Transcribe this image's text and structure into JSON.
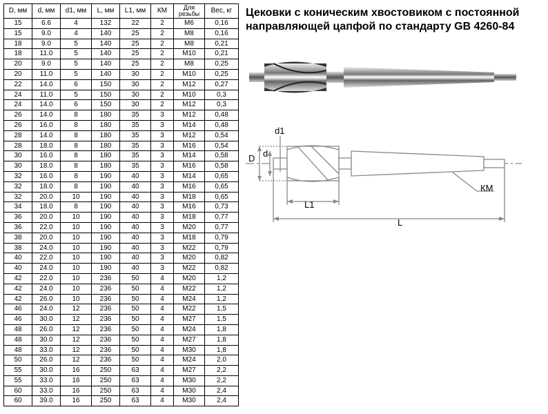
{
  "title": "Цековки с коническим хвостовиком с постоянной направляющей цапфой по стандарту GB 4260-84",
  "columns": [
    "D, мм",
    "d, мм",
    "d1, мм",
    "L, мм",
    "L1, мм",
    "КМ",
    "Для резьбы",
    "Вес, кг"
  ],
  "rows": [
    [
      "15",
      "6.6",
      "4",
      "132",
      "22",
      "2",
      "M6",
      "0,16"
    ],
    [
      "15",
      "9.0",
      "4",
      "140",
      "25",
      "2",
      "M8",
      "0,16"
    ],
    [
      "18",
      "9.0",
      "5",
      "140",
      "25",
      "2",
      "M8",
      "0,21"
    ],
    [
      "18",
      "11.0",
      "5",
      "140",
      "25",
      "2",
      "M10",
      "0,21"
    ],
    [
      "20",
      "9.0",
      "5",
      "140",
      "25",
      "2",
      "M8",
      "0,25"
    ],
    [
      "20",
      "11.0",
      "5",
      "140",
      "30",
      "2",
      "M10",
      "0,25"
    ],
    [
      "22",
      "14.0",
      "6",
      "150",
      "30",
      "2",
      "M12",
      "0,27"
    ],
    [
      "24",
      "11.0",
      "5",
      "150",
      "30",
      "2",
      "M10",
      "0,3"
    ],
    [
      "24",
      "14.0",
      "6",
      "150",
      "30",
      "2",
      "M12",
      "0,3"
    ],
    [
      "26",
      "14.0",
      "8",
      "180",
      "35",
      "3",
      "M12",
      "0,48"
    ],
    [
      "26",
      "16.0",
      "8",
      "180",
      "35",
      "3",
      "M14",
      "0,48"
    ],
    [
      "28",
      "14.0",
      "8",
      "180",
      "35",
      "3",
      "M12",
      "0,54"
    ],
    [
      "28",
      "18.0",
      "8",
      "180",
      "35",
      "3",
      "M16",
      "0,54"
    ],
    [
      "30",
      "16.0",
      "8",
      "180",
      "35",
      "3",
      "M14",
      "0,58"
    ],
    [
      "30",
      "18.0",
      "8",
      "180",
      "35",
      "3",
      "M16",
      "0,58"
    ],
    [
      "32",
      "16.0",
      "8",
      "190",
      "40",
      "3",
      "M14",
      "0,65"
    ],
    [
      "32",
      "18.0",
      "8",
      "190",
      "40",
      "3",
      "M16",
      "0,65"
    ],
    [
      "32",
      "20.0",
      "10",
      "190",
      "40",
      "3",
      "M18",
      "0,65"
    ],
    [
      "34",
      "18.0",
      "8",
      "190",
      "40",
      "3",
      "M16",
      "0,73"
    ],
    [
      "36",
      "20.0",
      "10",
      "190",
      "40",
      "3",
      "M18",
      "0,77"
    ],
    [
      "36",
      "22.0",
      "10",
      "190",
      "40",
      "3",
      "M20",
      "0,77"
    ],
    [
      "38",
      "20.0",
      "10",
      "190",
      "40",
      "3",
      "M18",
      "0,79"
    ],
    [
      "38",
      "24.0",
      "10",
      "190",
      "40",
      "3",
      "M22",
      "0,79"
    ],
    [
      "40",
      "22.0",
      "10",
      "190",
      "40",
      "3",
      "M20",
      "0,82"
    ],
    [
      "40",
      "24.0",
      "10",
      "190",
      "40",
      "3",
      "M22",
      "0,82"
    ],
    [
      "42",
      "22.0",
      "10",
      "236",
      "50",
      "4",
      "M20",
      "1,2"
    ],
    [
      "42",
      "24.0",
      "10",
      "236",
      "50",
      "4",
      "M22",
      "1,2"
    ],
    [
      "42",
      "26.0",
      "10",
      "236",
      "50",
      "4",
      "M24",
      "1,2"
    ],
    [
      "46",
      "24.0",
      "12",
      "236",
      "50",
      "4",
      "M22",
      "1,5"
    ],
    [
      "46",
      "30.0",
      "12",
      "236",
      "50",
      "4",
      "M27",
      "1,5"
    ],
    [
      "48",
      "26.0",
      "12",
      "236",
      "50",
      "4",
      "M24",
      "1,8"
    ],
    [
      "48",
      "30.0",
      "12",
      "236",
      "50",
      "4",
      "M27",
      "1,8"
    ],
    [
      "48",
      "33.0",
      "12",
      "236",
      "50",
      "4",
      "M30",
      "1,8"
    ],
    [
      "50",
      "26.0",
      "12",
      "236",
      "50",
      "4",
      "M24",
      "2,0"
    ],
    [
      "55",
      "30.0",
      "16",
      "250",
      "63",
      "4",
      "M27",
      "2,2"
    ],
    [
      "55",
      "33.0",
      "16",
      "250",
      "63",
      "4",
      "M30",
      "2,2"
    ],
    [
      "60",
      "33.0",
      "16",
      "250",
      "63",
      "4",
      "M30",
      "2,4"
    ],
    [
      "60",
      "39.0",
      "16",
      "250",
      "63",
      "4",
      "M30",
      "2,4"
    ]
  ],
  "diagram": {
    "labels": {
      "D": "D",
      "d": "d",
      "d1": "d1",
      "L": "L",
      "L1": "L1",
      "KM": "КМ"
    },
    "colors": {
      "line": "#888",
      "tool": "#999",
      "fill": "#ccc"
    }
  }
}
